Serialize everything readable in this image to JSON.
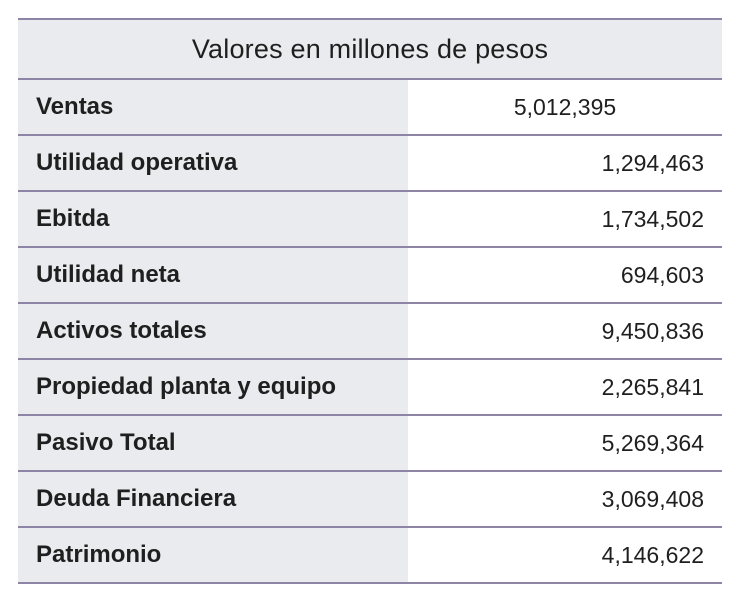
{
  "table": {
    "header": "Valores en millones de pesos",
    "rows": [
      {
        "label": "Ventas",
        "value": "5,012,395"
      },
      {
        "label": "Utilidad operativa",
        "value": "1,294,463"
      },
      {
        "label": "Ebitda",
        "value": "1,734,502"
      },
      {
        "label": "Utilidad neta",
        "value": "694,603"
      },
      {
        "label": "Activos totales",
        "value": "9,450,836"
      },
      {
        "label": "Propiedad planta y equipo",
        "value": "2,265,841"
      },
      {
        "label": "Pasivo Total",
        "value": "5,269,364"
      },
      {
        "label": "Deuda Financiera",
        "value": "3,069,408"
      },
      {
        "label": "Patrimonio",
        "value": "4,146,622"
      }
    ]
  },
  "colors": {
    "label_background": "#e9ebee",
    "border": "#8e84a6",
    "text": "#1f1f1f"
  }
}
